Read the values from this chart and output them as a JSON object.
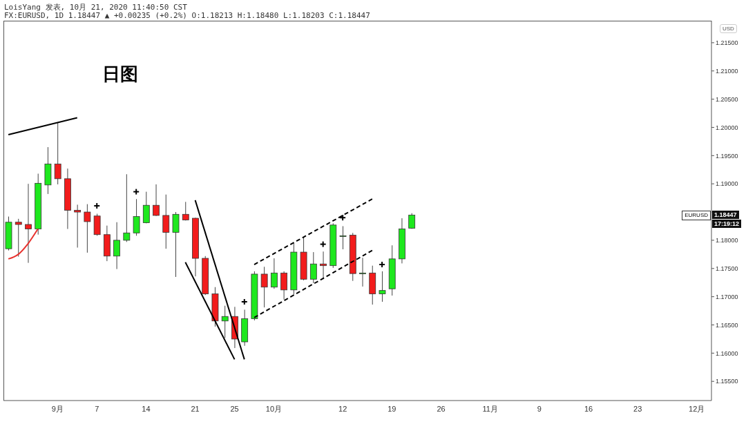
{
  "chart_data": {
    "type": "candlestick",
    "title": "LoisYang 发表, 10月 21, 2020 11:40:50 CST",
    "subtitle": "FX:EURUSD, 1D 1.18447 ▲ +0.00235 (+0.2%) O:1.18213 H:1.18480 L:1.18203 C:1.18447",
    "ylabel": "USD",
    "annotations": [
      "日图",
      {
        "text": "EURUSD",
        "y": 1.18447
      },
      {
        "text": "1.18447",
        "y": 1.18447
      },
      "17:19:12"
    ],
    "categories": [
      null,
      null,
      null,
      null,
      null,
      "9月",
      null,
      null,
      null,
      "7",
      null,
      null,
      null,
      null,
      "14",
      null,
      null,
      null,
      null,
      "21",
      null,
      null,
      null,
      "25",
      null,
      null,
      null,
      "10月",
      null,
      null,
      null,
      null,
      null,
      null,
      "12",
      null,
      null,
      null,
      null,
      "19",
      null,
      null,
      null,
      null,
      "26",
      null,
      null,
      null,
      null,
      "11月",
      null,
      null,
      null,
      null,
      "9",
      null,
      null,
      null,
      null,
      "16",
      null,
      null,
      null,
      null,
      "23",
      null,
      null,
      null,
      null,
      null,
      "12月",
      null
    ],
    "ohlc": [
      [
        1.1785,
        1.1842,
        1.1782,
        1.1832
      ],
      [
        1.1832,
        1.1838,
        1.1771,
        1.1828
      ],
      [
        1.1828,
        1.19,
        1.176,
        1.182
      ],
      [
        1.182,
        1.1918,
        1.181,
        1.1901
      ],
      [
        1.1898,
        1.1965,
        1.1882,
        1.1935
      ],
      [
        1.1935,
        1.2008,
        1.1899,
        1.1909
      ],
      [
        1.1909,
        1.1927,
        1.182,
        1.1853
      ],
      [
        1.1853,
        1.1863,
        1.1787,
        1.185
      ],
      [
        1.185,
        1.1864,
        1.1778,
        1.1833
      ],
      [
        1.1843,
        1.1847,
        1.1808,
        1.181
      ],
      [
        1.181,
        1.1826,
        1.1763,
        1.1772
      ],
      [
        1.1772,
        1.1832,
        1.1749,
        1.18
      ],
      [
        1.18,
        1.1917,
        1.1797,
        1.1813
      ],
      [
        1.1813,
        1.1873,
        1.1808,
        1.1842
      ],
      [
        1.1831,
        1.1886,
        1.183,
        1.1862
      ],
      [
        1.1862,
        1.1899,
        1.1843,
        1.1844
      ],
      [
        1.1844,
        1.1881,
        1.1785,
        1.1814
      ],
      [
        1.1814,
        1.185,
        1.1735,
        1.1846
      ],
      [
        1.1846,
        1.1868,
        1.1835,
        1.1836
      ],
      [
        1.1839,
        1.184,
        1.1736,
        1.1768
      ],
      [
        1.1768,
        1.1772,
        1.1703,
        1.1705
      ],
      [
        1.1705,
        1.1717,
        1.1647,
        1.1657
      ],
      [
        1.1657,
        1.1684,
        1.1627,
        1.1665
      ],
      [
        1.1665,
        1.1682,
        1.1609,
        1.1625
      ],
      [
        1.162,
        1.1677,
        1.1613,
        1.1661
      ],
      [
        1.1661,
        1.1745,
        1.1658,
        1.174
      ],
      [
        1.174,
        1.1753,
        1.1681,
        1.1717
      ],
      [
        1.1717,
        1.1768,
        1.1714,
        1.1742
      ],
      [
        1.1742,
        1.1745,
        1.1695,
        1.1712
      ],
      [
        1.1712,
        1.1795,
        1.1704,
        1.1779
      ],
      [
        1.1779,
        1.1805,
        1.1729,
        1.1731
      ],
      [
        1.1731,
        1.1779,
        1.1724,
        1.1758
      ],
      [
        1.1758,
        1.178,
        1.1731,
        1.1755
      ],
      [
        1.1755,
        1.183,
        1.1751,
        1.1827
      ],
      [
        1.1807,
        1.1825,
        1.1784,
        1.1808
      ],
      [
        1.1809,
        1.1813,
        1.1728,
        1.1741
      ],
      [
        1.1742,
        1.1769,
        1.1718,
        1.1742
      ],
      [
        1.1742,
        1.1755,
        1.1686,
        1.1705
      ],
      [
        1.1705,
        1.1745,
        1.1691,
        1.1711
      ],
      [
        1.1714,
        1.1791,
        1.1702,
        1.1767
      ],
      [
        1.1767,
        1.1839,
        1.1759,
        1.182
      ],
      [
        1.18213,
        1.1848,
        1.18203,
        1.18447
      ],
      null,
      null,
      null,
      null,
      null,
      null,
      null,
      null,
      null,
      null,
      null,
      null,
      null,
      null,
      null,
      null,
      null,
      null,
      null,
      null,
      null,
      null,
      null,
      null,
      null,
      null,
      null,
      null,
      null,
      null
    ],
    "colors": [
      "#1ee81e",
      "#f21c1c",
      "#f21c1c",
      "#1ee81e",
      "#1ee81e",
      "#f21c1c",
      "#f21c1c",
      "#f21c1c",
      "#f21c1c",
      "#f21c1c",
      "#f21c1c",
      "#1ee81e",
      "#1ee81e",
      "#1ee81e",
      "#1ee81e",
      "#f21c1c",
      "#f21c1c",
      "#1ee81e",
      "#f21c1c",
      "#f21c1c",
      "#f21c1c",
      "#f21c1c",
      "#1ee81e",
      "#f21c1c",
      "#1ee81e",
      "#1ee81e",
      "#f21c1c",
      "#1ee81e",
      "#f21c1c",
      "#1ee81e",
      "#f21c1c",
      "#1ee81e",
      "#f21c1c",
      "#1ee81e",
      "#1ee81e",
      "#f21c1c",
      "#1ee81e",
      "#f21c1c",
      "#1ee81e",
      "#1ee81e",
      "#1ee81e",
      "#1ee81e",
      null,
      null,
      null,
      null,
      null,
      null,
      null,
      null,
      null,
      null,
      null,
      null,
      null,
      null,
      null,
      null,
      null,
      null,
      null,
      null,
      null,
      null,
      null,
      null,
      null,
      null,
      null,
      null,
      null,
      null
    ],
    "series": [
      {
        "type": "line",
        "color": "#e8322e",
        "values": [
          1.1767,
          1.1775,
          1.1794,
          1.182,
          null,
          null,
          null,
          null,
          null,
          null,
          null,
          null,
          null,
          null,
          null,
          null,
          null,
          null,
          null,
          null,
          null,
          null,
          null,
          null,
          null,
          null,
          null,
          null,
          null,
          null,
          null,
          null,
          null,
          null,
          null,
          null,
          null,
          null,
          null,
          null,
          null,
          null,
          null,
          null,
          null,
          null,
          null,
          null,
          null,
          null,
          null,
          null,
          null,
          null,
          null,
          null,
          null,
          null,
          null,
          null,
          null,
          null,
          null,
          null,
          null,
          null,
          null,
          null,
          null,
          null,
          null,
          null
        ]
      },
      {
        "type": "line",
        "color": "#000000",
        "values": [
          1.1987,
          null,
          null,
          null,
          null,
          null,
          null,
          1.2017,
          null,
          null,
          null,
          null,
          null,
          null,
          null,
          null,
          null,
          null,
          null,
          null,
          null,
          null,
          null,
          null,
          null,
          null,
          null,
          null,
          null,
          null,
          null,
          null,
          null,
          null,
          null,
          null,
          null,
          null,
          null,
          null,
          null,
          null,
          null,
          null,
          null,
          null,
          null,
          null,
          null,
          null,
          null,
          null,
          null,
          null,
          null,
          null,
          null,
          null,
          null,
          null,
          null,
          null,
          null,
          null,
          null,
          null,
          null,
          null,
          null,
          null,
          null,
          null
        ]
      },
      {
        "type": "line",
        "color": "#000000",
        "values": [
          null,
          null,
          null,
          null,
          null,
          null,
          null,
          null,
          null,
          null,
          null,
          null,
          null,
          null,
          null,
          null,
          null,
          null,
          null,
          1.1871,
          null,
          null,
          null,
          null,
          1.1589,
          null,
          null,
          null,
          null,
          null,
          null,
          null,
          null,
          null,
          null,
          null,
          null,
          null,
          null,
          null,
          null,
          null,
          null,
          null,
          null,
          null,
          null,
          null,
          null,
          null,
          null,
          null,
          null,
          null,
          null,
          null,
          null,
          null,
          null,
          null,
          null,
          null,
          null,
          null,
          null,
          null,
          null,
          null,
          null,
          null,
          null,
          null
        ]
      },
      {
        "type": "line",
        "color": "#000000",
        "values": [
          null,
          null,
          null,
          null,
          null,
          null,
          null,
          null,
          null,
          null,
          null,
          null,
          null,
          null,
          null,
          null,
          null,
          null,
          1.1761,
          null,
          null,
          null,
          null,
          1.1589,
          null,
          null,
          null,
          null,
          null,
          null,
          null,
          null,
          null,
          null,
          null,
          null,
          null,
          null,
          null,
          null,
          null,
          null,
          null,
          null,
          null,
          null,
          null,
          null,
          null,
          null,
          null,
          null,
          null,
          null,
          null,
          null,
          null,
          null,
          null,
          null,
          null,
          null,
          null,
          null,
          null,
          null,
          null,
          null,
          null,
          null,
          null,
          null
        ]
      },
      {
        "type": "line",
        "color": "#000000",
        "line_style": "dashed",
        "values": [
          null,
          null,
          null,
          null,
          null,
          null,
          null,
          null,
          null,
          null,
          null,
          null,
          null,
          null,
          null,
          null,
          null,
          null,
          null,
          null,
          null,
          null,
          null,
          null,
          null,
          1.1757,
          null,
          null,
          null,
          null,
          null,
          null,
          null,
          null,
          null,
          null,
          null,
          1.1873,
          null,
          null,
          null,
          null,
          null,
          null,
          null,
          null,
          null,
          null,
          null,
          null,
          null,
          null,
          null,
          null,
          null,
          null,
          null,
          null,
          null,
          null,
          null,
          null,
          null,
          null,
          null,
          null,
          null,
          null,
          null,
          null,
          null,
          null
        ]
      },
      {
        "type": "line",
        "color": "#000000",
        "line_style": "dashed",
        "values": [
          null,
          null,
          null,
          null,
          null,
          null,
          null,
          null,
          null,
          null,
          null,
          null,
          null,
          null,
          null,
          null,
          null,
          null,
          null,
          null,
          null,
          null,
          null,
          null,
          null,
          1.1663,
          null,
          null,
          null,
          null,
          null,
          null,
          null,
          null,
          null,
          null,
          null,
          1.1782,
          null,
          null,
          null,
          null,
          null,
          null,
          null,
          null,
          null,
          null,
          null,
          null,
          null,
          null,
          null,
          null,
          null,
          null,
          null,
          null,
          null,
          null,
          null,
          null,
          null,
          null,
          null,
          null,
          null,
          null,
          null,
          null,
          null,
          null
        ]
      },
      {
        "type": "scatter",
        "color": "#000000",
        "marker": "cross",
        "values": [
          null,
          null,
          null,
          null,
          null,
          null,
          null,
          null,
          null,
          1.1861,
          null,
          null,
          null,
          1.1886,
          null,
          null,
          null,
          null,
          null,
          null,
          null,
          null,
          null,
          null,
          1.1691,
          null,
          null,
          null,
          null,
          null,
          null,
          null,
          1.1793,
          null,
          1.184,
          null,
          null,
          null,
          1.1757,
          null,
          null,
          null,
          null,
          null,
          null,
          null,
          null,
          null,
          null,
          null,
          null,
          null,
          null,
          null,
          null,
          null,
          null,
          null,
          null,
          null,
          null,
          null,
          null,
          null,
          null,
          null,
          null,
          null,
          null,
          null,
          null,
          null
        ]
      }
    ],
    "ylim": [
      1.1516,
      1.2189
    ],
    "yticks": [
      {
        "value": 1.155,
        "label": "1.15500"
      },
      {
        "value": 1.16,
        "label": "1.16000"
      },
      {
        "value": 1.165,
        "label": "1.16500"
      },
      {
        "value": 1.17,
        "label": "1.17000"
      },
      {
        "value": 1.175,
        "label": "1.17500"
      },
      {
        "value": 1.18,
        "label": "1.18000"
      },
      {
        "value": 1.185,
        "label": null
      },
      {
        "value": 1.19,
        "label": "1.19000"
      },
      {
        "value": 1.195,
        "label": "1.19500"
      },
      {
        "value": 1.2,
        "label": "1.20000"
      },
      {
        "value": 1.205,
        "label": "1.20500"
      },
      {
        "value": 1.21,
        "label": "1.21000"
      },
      {
        "value": 1.215,
        "label": "1.21500"
      }
    ]
  }
}
